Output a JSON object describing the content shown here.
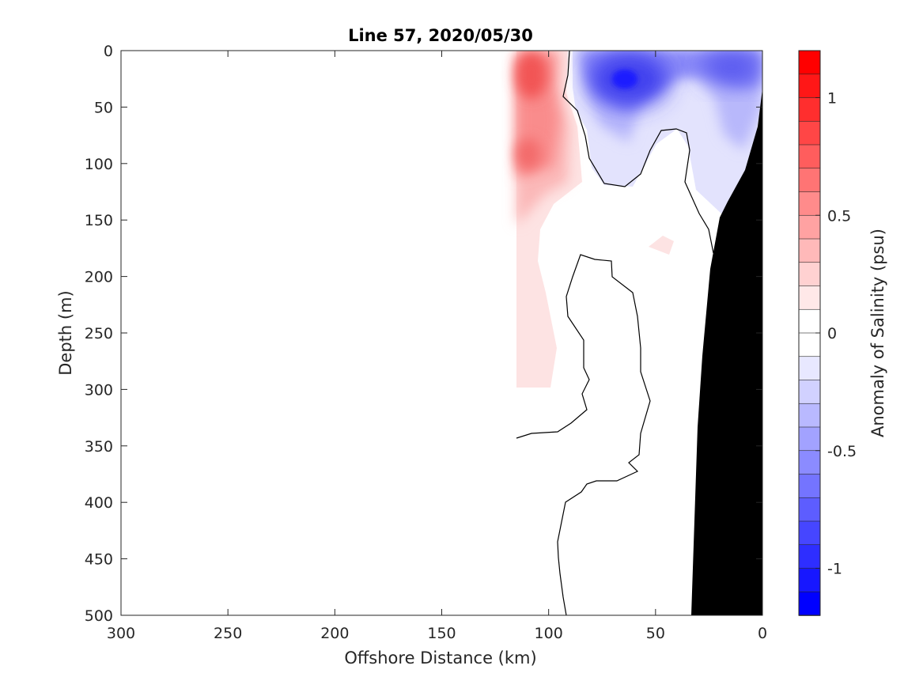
{
  "chart_data": {
    "type": "heatmap",
    "title": "Line 57, 2020/05/30",
    "xlabel": "Offshore Distance (km)",
    "ylabel": "Depth (m)",
    "xlim": [
      300,
      0
    ],
    "ylim": [
      500,
      0
    ],
    "x_reversed": true,
    "y_reversed": true,
    "xticks": [
      "300",
      "250",
      "200",
      "150",
      "100",
      "50",
      "0"
    ],
    "yticks": [
      "0",
      "50",
      "100",
      "150",
      "200",
      "250",
      "300",
      "350",
      "400",
      "450",
      "500"
    ],
    "colorbar": {
      "label": "Anomaly of Salinity (psu)",
      "range": [
        -1.2,
        1.2
      ],
      "levels": 24,
      "ticks": [
        "1",
        "0.5",
        "0",
        "-0.5",
        "-1"
      ],
      "tick_values": [
        1,
        0.5,
        0,
        -0.5,
        -1
      ],
      "colors": {
        "negative": "#0000ff",
        "neutral": "#ffffff",
        "positive": "#ff0000"
      }
    },
    "grid": false,
    "bathymetry_color": "#000000",
    "data_coverage_km": [
      0,
      115
    ],
    "anomaly_regions": [
      {
        "sign": "positive",
        "peak": 0.7,
        "x_range_km": [
          85,
          115
        ],
        "depth_range_m": [
          0,
          300
        ]
      },
      {
        "sign": "negative",
        "peak": -1.1,
        "x_range_km": [
          0,
          90
        ],
        "depth_range_m": [
          0,
          150
        ]
      },
      {
        "sign": "positive",
        "peak": 0.15,
        "x_range_km": [
          41,
          53
        ],
        "depth_range_m": [
          162,
          182
        ]
      }
    ]
  }
}
